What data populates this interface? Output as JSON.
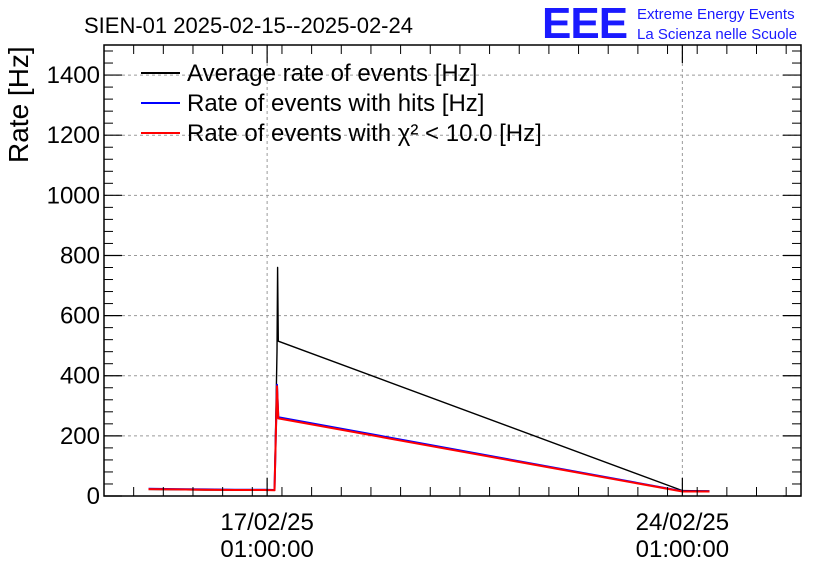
{
  "chart_data": {
    "type": "line",
    "title": "SIEN-01 2025-02-15--2025-02-24",
    "ylabel": "Rate [Hz]",
    "xlabel": "",
    "ylim": [
      0,
      1500
    ],
    "xlim": [
      "2025-02-14 07:00",
      "2025-02-26 01:00"
    ],
    "yticks": [
      0,
      200,
      400,
      600,
      800,
      1000,
      1200,
      1400
    ],
    "xticks": [
      {
        "at": "2025-02-17 01:00",
        "label_date": "17/02/25",
        "label_time": "01:00:00"
      },
      {
        "at": "2025-02-24 01:00",
        "label_date": "24/02/25",
        "label_time": "01:00:00"
      }
    ],
    "grid": true,
    "legend_position": "top-left",
    "series": [
      {
        "name": "Average rate of events [Hz]",
        "color": "#000000",
        "points": [
          [
            "2025-02-15 01:00",
            22
          ],
          [
            "2025-02-15 12:00",
            21
          ],
          [
            "2025-02-16 00:00",
            20
          ],
          [
            "2025-02-16 12:00",
            20
          ],
          [
            "2025-02-17 00:00",
            19
          ],
          [
            "2025-02-17 04:00",
            19
          ],
          [
            "2025-02-17 05:00",
            480
          ],
          [
            "2025-02-17 05:15",
            760
          ],
          [
            "2025-02-17 05:30",
            515
          ],
          [
            "2025-02-24 01:00",
            18
          ],
          [
            "2025-02-24 12:00",
            17
          ]
        ]
      },
      {
        "name": "Rate of events with hits [Hz]",
        "color": "#0000ff",
        "points": [
          [
            "2025-02-15 01:00",
            24
          ],
          [
            "2025-02-15 12:00",
            23
          ],
          [
            "2025-02-16 00:00",
            22
          ],
          [
            "2025-02-16 12:00",
            21
          ],
          [
            "2025-02-17 00:00",
            21
          ],
          [
            "2025-02-17 04:00",
            20
          ],
          [
            "2025-02-17 05:00",
            370
          ],
          [
            "2025-02-17 05:30",
            262
          ],
          [
            "2025-02-24 01:00",
            16
          ],
          [
            "2025-02-24 12:00",
            16
          ]
        ]
      },
      {
        "name": "Rate of events with χ² < 10.0 [Hz]",
        "color": "#ff0000",
        "points": [
          [
            "2025-02-15 01:00",
            23
          ],
          [
            "2025-02-15 12:00",
            22
          ],
          [
            "2025-02-16 00:00",
            21
          ],
          [
            "2025-02-16 12:00",
            20
          ],
          [
            "2025-02-17 00:00",
            20
          ],
          [
            "2025-02-17 04:00",
            19
          ],
          [
            "2025-02-17 05:00",
            365
          ],
          [
            "2025-02-17 05:30",
            258
          ],
          [
            "2025-02-24 01:00",
            15
          ],
          [
            "2025-02-24 12:00",
            15
          ]
        ]
      }
    ]
  },
  "logo": {
    "mark": "EEE",
    "line1": "Extreme Energy Events",
    "line2": "La Scienza nelle Scuole",
    "color": "#1a1aff"
  }
}
